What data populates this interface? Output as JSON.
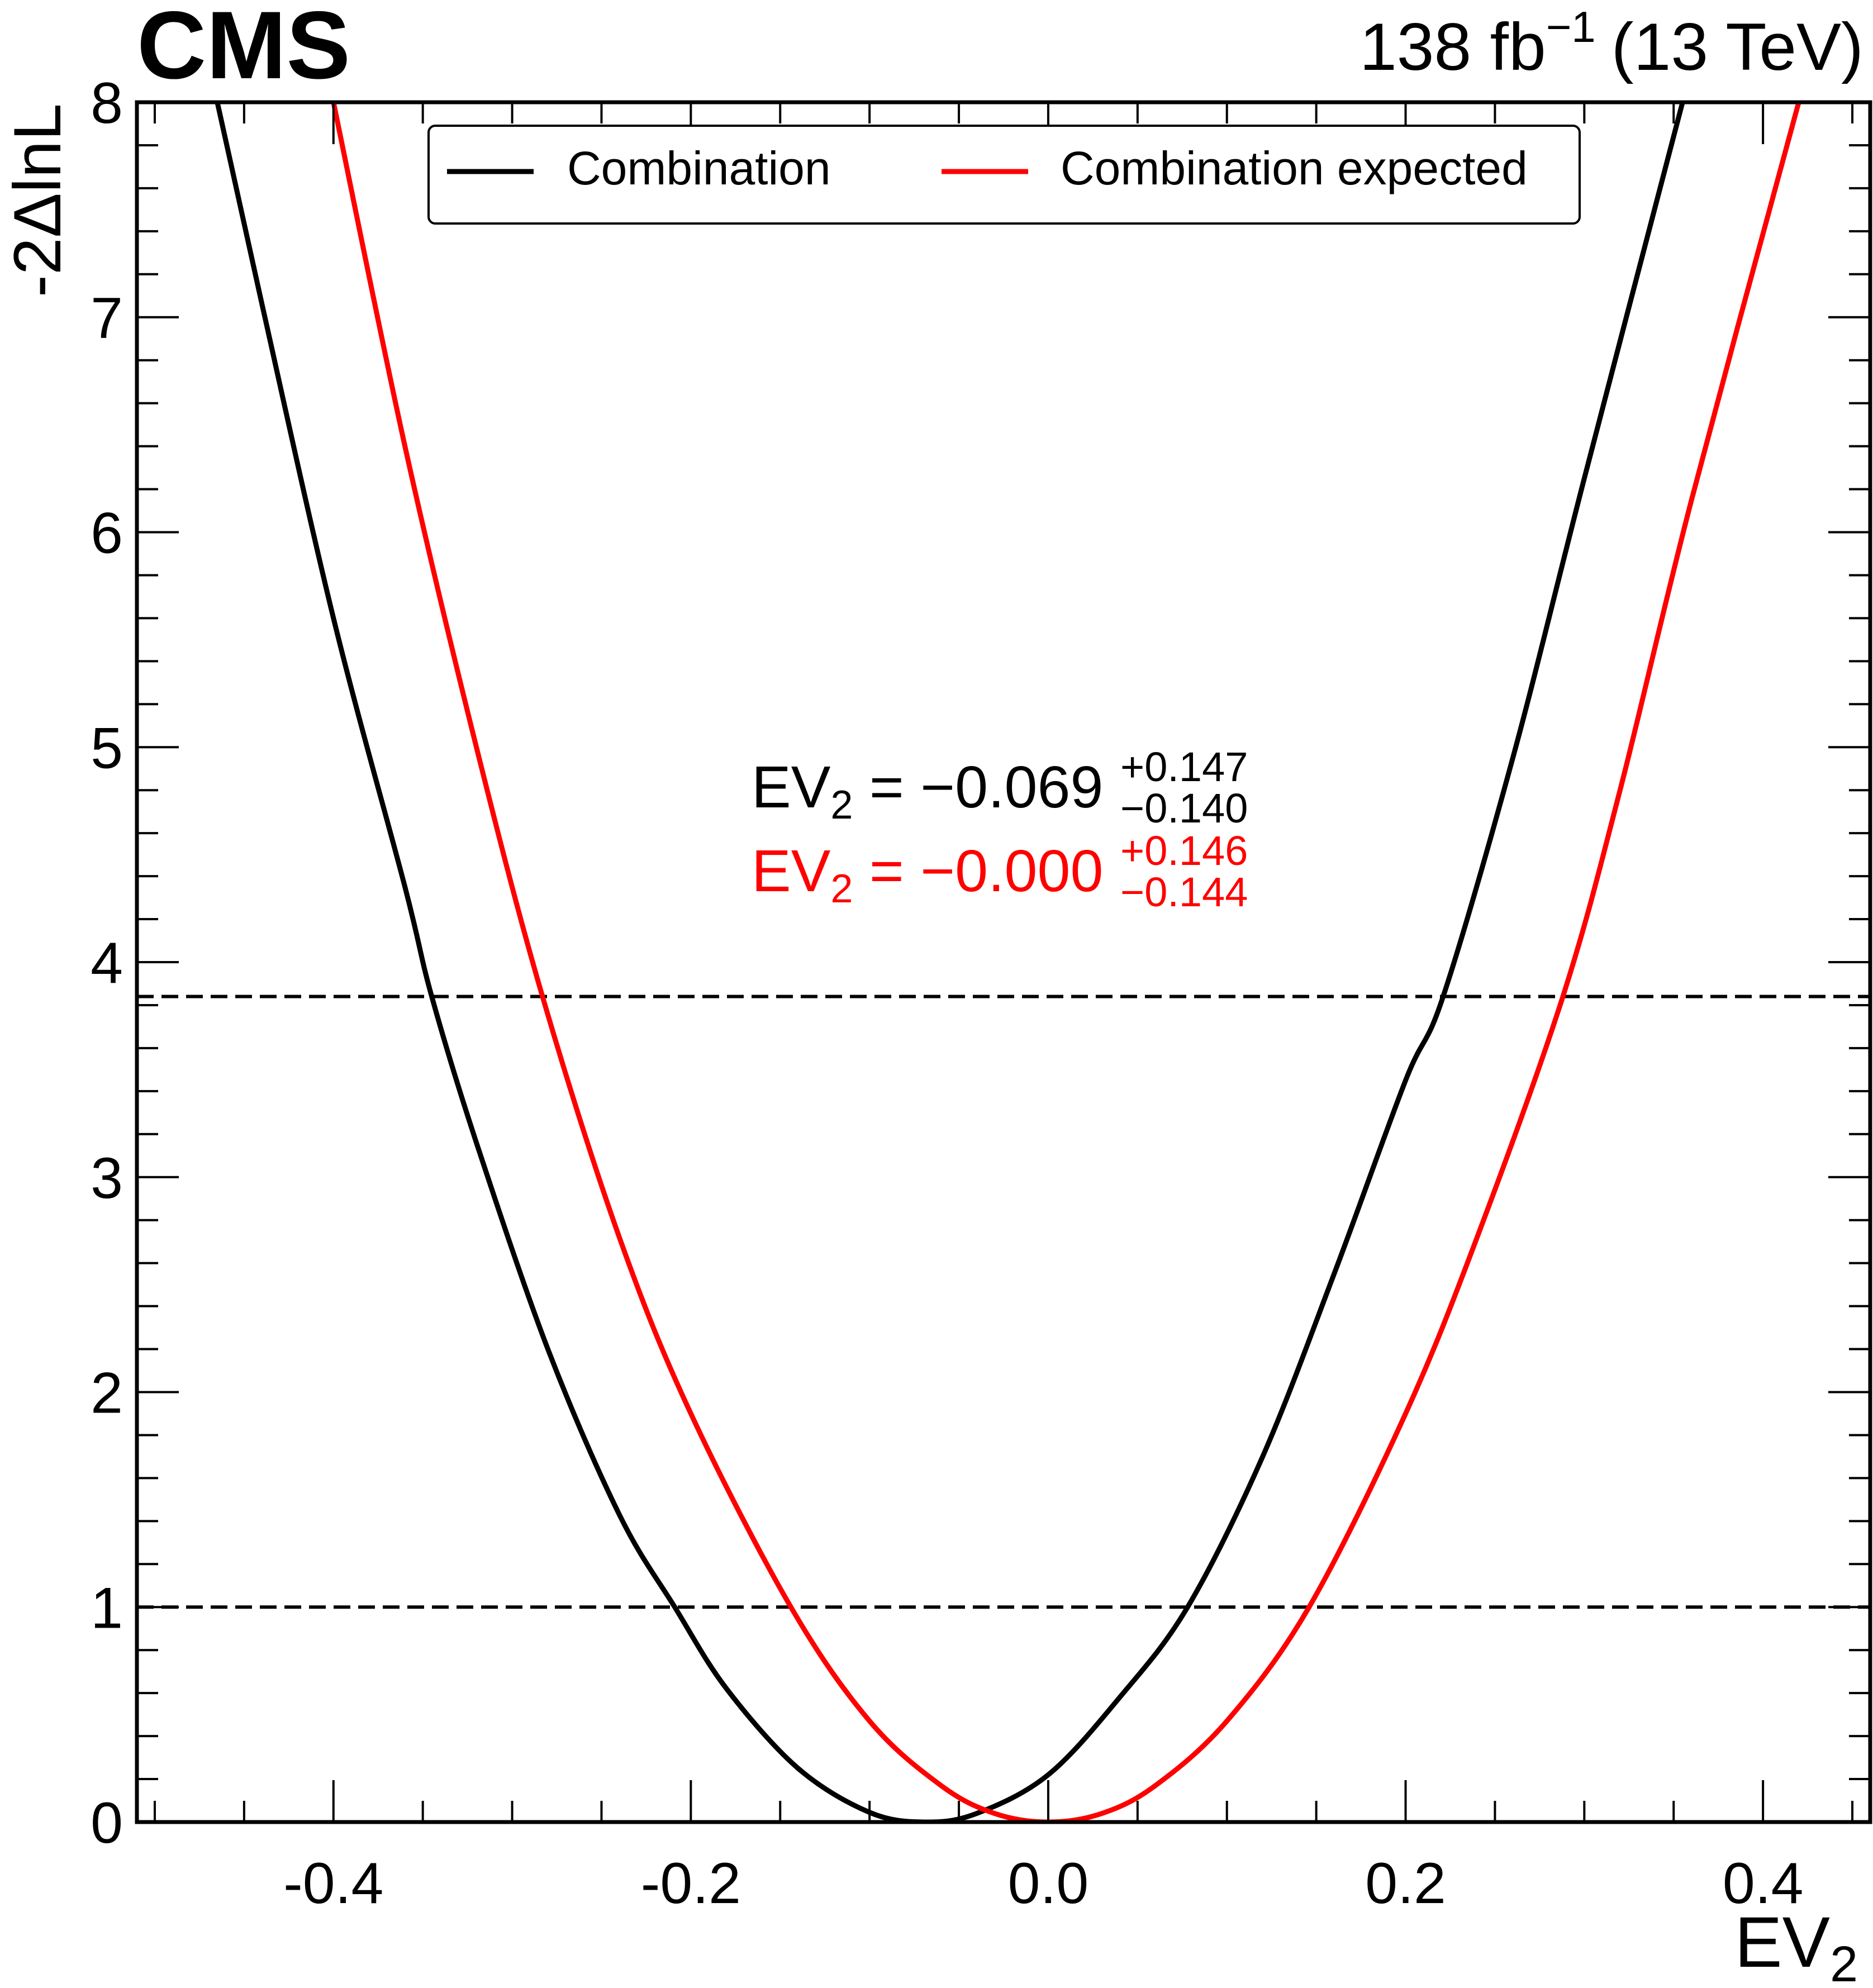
{
  "header": {
    "experiment": "CMS",
    "lumi_value": "138 fb",
    "lumi_exponent": "−1",
    "energy": "(13 TeV)"
  },
  "chart_data": {
    "type": "line",
    "xlabel": "EV",
    "xlabel_sub": "2",
    "ylabel": "-2ΔlnL",
    "xlim": [
      -0.51,
      0.46
    ],
    "ylim": [
      0,
      8
    ],
    "x_ticks": [
      -0.4,
      -0.2,
      0.0,
      0.2,
      0.4
    ],
    "x_tick_labels": [
      "-0.4",
      "-0.2",
      "0.0",
      "0.2",
      "0.4"
    ],
    "y_ticks": [
      0,
      1,
      2,
      3,
      4,
      5,
      6,
      7,
      8
    ],
    "y_tick_labels": [
      "0",
      "1",
      "2",
      "3",
      "4",
      "5",
      "6",
      "7",
      "8"
    ],
    "grid": false,
    "legend_position": "top-center",
    "reference_lines": [
      1.0,
      3.84
    ],
    "series": [
      {
        "name": "Combination",
        "color": "#000000",
        "points": [
          [
            -0.465,
            8.0
          ],
          [
            -0.44,
            7.06
          ],
          [
            -0.4,
            5.6
          ],
          [
            -0.36,
            4.35
          ],
          [
            -0.345,
            3.84
          ],
          [
            -0.32,
            3.16
          ],
          [
            -0.28,
            2.2
          ],
          [
            -0.24,
            1.43
          ],
          [
            -0.209,
            1.0
          ],
          [
            -0.18,
            0.62
          ],
          [
            -0.14,
            0.25
          ],
          [
            -0.1,
            0.045
          ],
          [
            -0.069,
            0.0
          ],
          [
            -0.04,
            0.04
          ],
          [
            0.0,
            0.22
          ],
          [
            0.04,
            0.58
          ],
          [
            0.078,
            1.0
          ],
          [
            0.12,
            1.7
          ],
          [
            0.16,
            2.55
          ],
          [
            0.2,
            3.45
          ],
          [
            0.221,
            3.84
          ],
          [
            0.26,
            4.95
          ],
          [
            0.3,
            6.25
          ],
          [
            0.355,
            8.0
          ]
        ]
      },
      {
        "name": "Combination expected",
        "color": "#ff0000",
        "points": [
          [
            -0.4,
            8.0
          ],
          [
            -0.36,
            6.4
          ],
          [
            -0.32,
            5.0
          ],
          [
            -0.283,
            3.84
          ],
          [
            -0.24,
            2.72
          ],
          [
            -0.2,
            1.9
          ],
          [
            -0.144,
            1.0
          ],
          [
            -0.1,
            0.47
          ],
          [
            -0.06,
            0.17
          ],
          [
            -0.03,
            0.04
          ],
          [
            0.0,
            0.0
          ],
          [
            0.03,
            0.04
          ],
          [
            0.06,
            0.17
          ],
          [
            0.1,
            0.47
          ],
          [
            0.146,
            1.0
          ],
          [
            0.2,
            1.9
          ],
          [
            0.24,
            2.72
          ],
          [
            0.288,
            3.84
          ],
          [
            0.32,
            4.8
          ],
          [
            0.36,
            6.15
          ],
          [
            0.42,
            8.0
          ]
        ]
      }
    ],
    "annotations": [
      {
        "label": "EV",
        "sub": "2",
        "eq": " = −0.069",
        "up": "+0.147",
        "down": "−0.140",
        "color": "#000000"
      },
      {
        "label": "EV",
        "sub": "2",
        "eq": " = −0.000",
        "up": "+0.146",
        "down": "−0.144",
        "color": "#ff0000"
      }
    ]
  }
}
